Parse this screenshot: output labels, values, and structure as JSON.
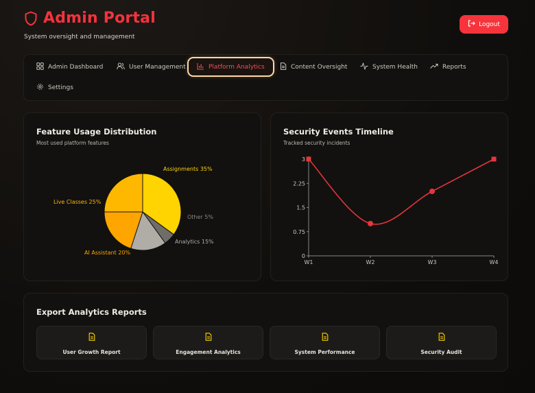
{
  "header": {
    "title": "Admin Portal",
    "subtitle": "System oversight and management",
    "logout_label": "Logout"
  },
  "nav": {
    "items": [
      {
        "label": "Admin Dashboard",
        "icon": "grid-icon"
      },
      {
        "label": "User Management",
        "icon": "users-icon"
      },
      {
        "label": "Platform Analytics",
        "icon": "bar-chart-icon",
        "active": true
      },
      {
        "label": "Content Oversight",
        "icon": "document-icon"
      },
      {
        "label": "System Health",
        "icon": "activity-icon"
      },
      {
        "label": "Reports",
        "icon": "trending-up-icon"
      },
      {
        "label": "Settings",
        "icon": "gear-icon"
      }
    ]
  },
  "feature_card": {
    "title": "Feature Usage Distribution",
    "subtitle": "Most used platform features"
  },
  "security_card": {
    "title": "Security Events Timeline",
    "subtitle": "Tracked security incidents"
  },
  "export": {
    "title": "Export Analytics Reports",
    "buttons": [
      "User Growth Report",
      "Engagement Analytics",
      "System Performance",
      "Security Audit"
    ]
  },
  "colors": {
    "accent": "#f4333d",
    "pie": [
      "#ffd400",
      "#b0ada6",
      "#6f6d69",
      "#ffa500",
      "#ffb800"
    ]
  },
  "chart_data": [
    {
      "type": "pie",
      "title": "Feature Usage Distribution",
      "labels": [
        "Assignments 35%",
        "Other 5%",
        "Analytics 15%",
        "AI Assistant 20%",
        "Live Classes 25%"
      ],
      "values": [
        35,
        5,
        15,
        20,
        25
      ],
      "colors": [
        "#ffd400",
        "#6f6d69",
        "#b0ada6",
        "#ffa500",
        "#ffb800"
      ],
      "label_colors": [
        "#ffd400",
        "#8a8781",
        "#b0ada6",
        "#ffa500",
        "#ffb800"
      ]
    },
    {
      "type": "line",
      "title": "Security Events Timeline",
      "x": [
        "W1",
        "W2",
        "W3",
        "W4"
      ],
      "values": [
        3,
        1,
        2,
        3
      ],
      "ylim": [
        0,
        3
      ],
      "yticks": [
        "0",
        "0.75",
        "1.5",
        "2.25",
        "3"
      ],
      "color": "#e8343b"
    }
  ]
}
